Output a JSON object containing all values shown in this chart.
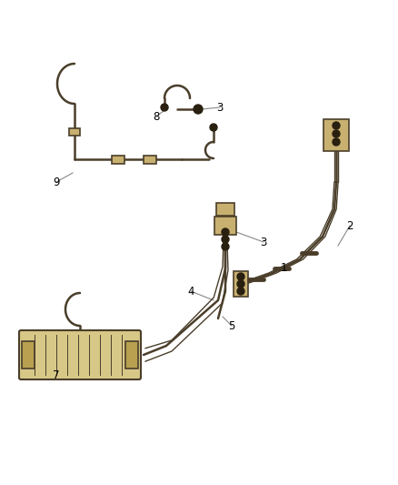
{
  "bg_color": "#ffffff",
  "line_color": "#4a3e2a",
  "line_color2": "#6b5a3a",
  "label_color": "#000000",
  "figsize": [
    4.38,
    5.33
  ],
  "dpi": 100,
  "lw_main": 1.8,
  "lw_thin": 1.0,
  "lw_hair": 0.6
}
